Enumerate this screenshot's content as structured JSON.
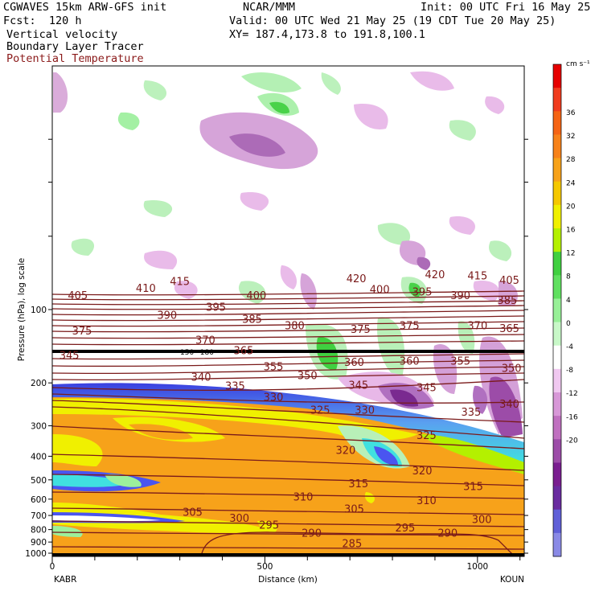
{
  "header": {
    "model": "CGWAVES 15km ARW-GFS init",
    "org": "NCAR/MMM",
    "init": "Init: 00 UTC Fri 16 May 25",
    "fcst": "Fcst:  120 h",
    "valid": "Valid: 00 UTC Wed 21 May 25 (19 CDT Tue 20 May 25)",
    "field1": "Vertical velocity",
    "xy": "XY= 187.4,173.8 to 191.8,100.1",
    "field2": "Boundary Layer Tracer",
    "field3": "Potential Temperature"
  },
  "colors": {
    "theta": "#7a1a1a",
    "orange": "#f7a21a",
    "yellow": "#f0f000",
    "green": "#9cf09c",
    "blue": "#4a55f0",
    "purple": "#cc66cc"
  },
  "chart_data": {
    "type": "heatmap",
    "xlabel": "Distance (km)",
    "ylabel": "Pressure (hPa), log scale",
    "x_ticks": [
      0,
      500,
      1000
    ],
    "xlim": [
      0,
      1110
    ],
    "y_ticks": [
      100,
      200,
      300,
      400,
      500,
      600,
      700,
      800,
      900,
      1000
    ],
    "y_scale": "log",
    "endpoints": {
      "left": "KABR",
      "right": "KOUN"
    },
    "colorbar": {
      "unit": "cm s⁻¹",
      "labels": [
        36,
        32,
        28,
        24,
        20,
        16,
        12,
        8,
        4,
        0,
        -4,
        -8,
        -12,
        -16,
        -20
      ],
      "colors": [
        "#e60000",
        "#f03c1e",
        "#f56414",
        "#f7821a",
        "#f7a21a",
        "#f5c800",
        "#f0f000",
        "#b4f000",
        "#40d040",
        "#60e060",
        "#98f098",
        "#c8f8c8",
        "#ffffff",
        "#f0c8f0",
        "#d898d8",
        "#c070c0",
        "#9c4ca8",
        "#7a1e90",
        "#6a2ca0",
        "#6060d8",
        "#8a8ae6"
      ]
    },
    "tropopause_label": "150~180",
    "isentropes": [
      {
        "label": "415",
        "x": 300,
        "p": 77
      },
      {
        "label": "410",
        "x": 220,
        "p": 82
      },
      {
        "label": "405",
        "x": 60,
        "p": 88
      },
      {
        "label": "420",
        "x": 715,
        "p": 75
      },
      {
        "label": "420",
        "x": 900,
        "p": 72
      },
      {
        "label": "415",
        "x": 1000,
        "p": 73
      },
      {
        "label": "405",
        "x": 1075,
        "p": 76
      },
      {
        "label": "400",
        "x": 480,
        "p": 88
      },
      {
        "label": "400",
        "x": 770,
        "p": 83
      },
      {
        "label": "395",
        "x": 385,
        "p": 98
      },
      {
        "label": "395",
        "x": 870,
        "p": 85
      },
      {
        "label": "390",
        "x": 270,
        "p": 106
      },
      {
        "label": "390",
        "x": 960,
        "p": 88
      },
      {
        "label": "385",
        "x": 470,
        "p": 110
      },
      {
        "label": "385",
        "x": 1070,
        "p": 92
      },
      {
        "label": "380",
        "x": 570,
        "p": 117
      },
      {
        "label": "375",
        "x": 70,
        "p": 123
      },
      {
        "label": "375",
        "x": 725,
        "p": 121
      },
      {
        "label": "375",
        "x": 840,
        "p": 117
      },
      {
        "label": "370",
        "x": 1000,
        "p": 117
      },
      {
        "label": "365",
        "x": 1075,
        "p": 120
      },
      {
        "label": "370",
        "x": 360,
        "p": 134
      },
      {
        "label": "365",
        "x": 450,
        "p": 148
      },
      {
        "label": "345",
        "x": 40,
        "p": 155
      },
      {
        "label": "355",
        "x": 520,
        "p": 172
      },
      {
        "label": "360",
        "x": 710,
        "p": 165
      },
      {
        "label": "360",
        "x": 840,
        "p": 163
      },
      {
        "label": "355",
        "x": 960,
        "p": 163
      },
      {
        "label": "350",
        "x": 1080,
        "p": 175
      },
      {
        "label": "350",
        "x": 600,
        "p": 187
      },
      {
        "label": "345",
        "x": 720,
        "p": 205
      },
      {
        "label": "345",
        "x": 880,
        "p": 210
      },
      {
        "label": "340",
        "x": 350,
        "p": 190
      },
      {
        "label": "335",
        "x": 430,
        "p": 207
      },
      {
        "label": "330",
        "x": 520,
        "p": 230
      },
      {
        "label": "325",
        "x": 630,
        "p": 260
      },
      {
        "label": "330",
        "x": 735,
        "p": 260
      },
      {
        "label": "335",
        "x": 985,
        "p": 265
      },
      {
        "label": "340",
        "x": 1075,
        "p": 245
      },
      {
        "label": "325",
        "x": 880,
        "p": 330
      },
      {
        "label": "320",
        "x": 690,
        "p": 380
      },
      {
        "label": "320",
        "x": 870,
        "p": 460
      },
      {
        "label": "315",
        "x": 720,
        "p": 520
      },
      {
        "label": "315",
        "x": 990,
        "p": 535
      },
      {
        "label": "310",
        "x": 590,
        "p": 590
      },
      {
        "label": "310",
        "x": 880,
        "p": 610
      },
      {
        "label": "305",
        "x": 330,
        "p": 680
      },
      {
        "label": "305",
        "x": 710,
        "p": 660
      },
      {
        "label": "300",
        "x": 440,
        "p": 720
      },
      {
        "label": "300",
        "x": 1010,
        "p": 730
      },
      {
        "label": "295",
        "x": 510,
        "p": 770
      },
      {
        "label": "295",
        "x": 830,
        "p": 790
      },
      {
        "label": "290",
        "x": 610,
        "p": 830
      },
      {
        "label": "290",
        "x": 930,
        "p": 830
      },
      {
        "label": "285",
        "x": 705,
        "p": 915
      }
    ]
  }
}
